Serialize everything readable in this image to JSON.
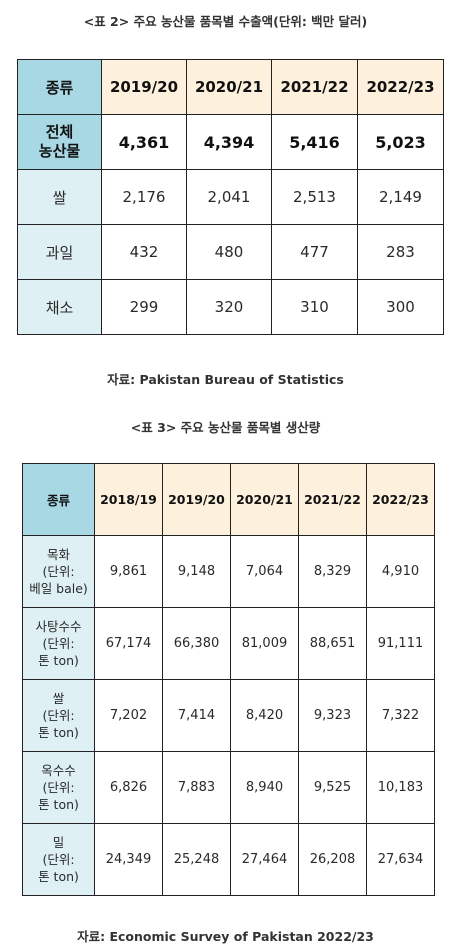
{
  "table2": {
    "caption": "<표 2> 주요 농산물 품목별 수출액(단위: 백만 달러)",
    "header": [
      "종류",
      "2019/20",
      "2020/21",
      "2021/22",
      "2022/23"
    ],
    "rows": [
      {
        "category": "전체\n농산물",
        "values": [
          "4,361",
          "4,394",
          "5,416",
          "5,023"
        ],
        "bold": true
      },
      {
        "category": "쌀",
        "values": [
          "2,176",
          "2,041",
          "2,513",
          "2,149"
        ]
      },
      {
        "category": "과일",
        "values": [
          "432",
          "480",
          "477",
          "283"
        ]
      },
      {
        "category": "채소",
        "values": [
          "299",
          "320",
          "310",
          "300"
        ]
      }
    ],
    "source": "자료: Pakistan Bureau of Statistics"
  },
  "table3": {
    "caption": "<표 3> 주요 농산물 품목별 생산량",
    "header": [
      "종류",
      "2018/19",
      "2019/20",
      "2020/21",
      "2021/22",
      "2022/23"
    ],
    "rows": [
      {
        "category": "목화\n(단위:\n베일 bale)",
        "values": [
          "9,861",
          "9,148",
          "7,064",
          "8,329",
          "4,910"
        ]
      },
      {
        "category": "사탕수수\n(단위:\n톤 ton)",
        "values": [
          "67,174",
          "66,380",
          "81,009",
          "88,651",
          "91,111"
        ]
      },
      {
        "category": "쌀\n(단위:\n톤 ton)",
        "values": [
          "7,202",
          "7,414",
          "8,420",
          "9,323",
          "7,322"
        ]
      },
      {
        "category": "옥수수\n(단위:\n톤 ton)",
        "values": [
          "6,826",
          "7,883",
          "8,940",
          "9,525",
          "10,183"
        ]
      },
      {
        "category": "밀\n(단위:\n톤 ton)",
        "values": [
          "24,349",
          "25,248",
          "27,464",
          "26,208",
          "27,634"
        ]
      }
    ],
    "source": "자료: Economic Survey of Pakistan 2022/23"
  },
  "colors": {
    "category_header_bg": "#a8d8e4",
    "year_header_bg": "#fdf1de",
    "category_cell_bg": "#dff0f5"
  }
}
